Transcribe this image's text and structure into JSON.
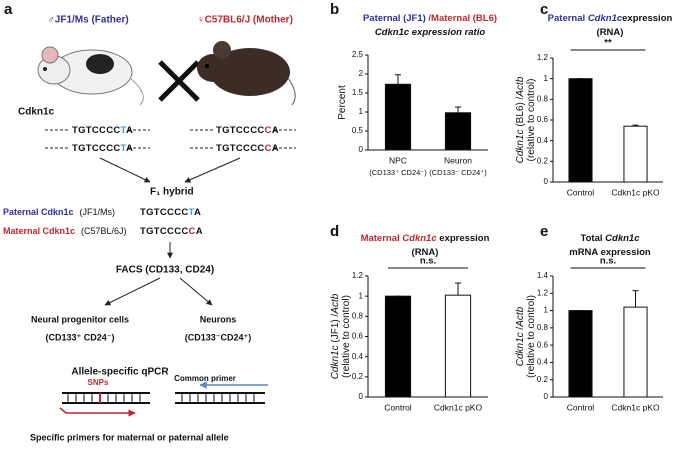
{
  "panel_a": {
    "label": "a",
    "father": "♂JF1/Ms (Father)",
    "mother": "♀C57BL6/J (Mother)",
    "gene": "Cdkn1c",
    "father_alleles": [
      {
        "prefix": "TGTCCCC",
        "snp": "T",
        "suffix": "A"
      },
      {
        "prefix": "TGTCCCC",
        "snp": "T",
        "suffix": "A"
      }
    ],
    "mother_alleles": [
      {
        "prefix": "TGTCCCC",
        "snp": "C",
        "suffix": "A"
      },
      {
        "prefix": "TGTCCCC",
        "snp": "C",
        "suffix": "A"
      }
    ],
    "hybrid": "F₁ hybrid",
    "paternal": {
      "name": "Paternal Cdkn1c",
      "strain": "(JF1/Ms)",
      "seq": {
        "prefix": "TGTCCCC",
        "snp": "T",
        "suffix": "A"
      }
    },
    "maternal": {
      "name": "Maternal Cdkn1c",
      "strain": "(C57BL/6J)",
      "seq": {
        "prefix": "TGTCCCC",
        "snp": "C",
        "suffix": "A"
      }
    },
    "facs": "FACS (CD133, CD24)",
    "npc": "Neural progenitor cells",
    "npc_markers": "(CD133⁺ CD24⁻)",
    "neurons": "Neurons",
    "neuron_markers": "(CD133⁻CD24⁺)",
    "qpcr": "Allele-specific qPCR",
    "snps": "SNPs",
    "common_primer": "Common primer",
    "specific_primers": "Specific primers for maternal or paternal allele"
  },
  "chart_data": [
    {
      "type": "bar",
      "label": "b",
      "title": [
        [
          {
            "text": "Paternal (JF1) ",
            "color": "#2e2e9e"
          },
          {
            "text": "/Maternal (BL6)",
            "color": "#c0272d"
          }
        ],
        [
          {
            "text": "Cdkn1c expression ratio",
            "italic": true
          }
        ]
      ],
      "ylabel": [
        [
          {
            "text": "Percent"
          }
        ]
      ],
      "categories": [
        "NPC",
        "Neuron"
      ],
      "category_sublabels": [
        "(CD133⁺ CD24⁻)",
        "(CD133⁻ CD24⁺)"
      ],
      "values": [
        1.73,
        0.98
      ],
      "errors": [
        0.25,
        0.15
      ],
      "colors": [
        "#000000",
        "#000000"
      ],
      "ylim": [
        0,
        2.5
      ],
      "yticks": [
        0,
        0.5,
        1,
        1.5,
        2,
        2.5
      ]
    },
    {
      "type": "bar",
      "label": "c",
      "title": [
        [
          {
            "text": "Paternal ",
            "color": "#2e2e9e"
          },
          {
            "text": "Cdkn1c",
            "italic": true,
            "color": "#2e2e9e"
          },
          {
            "text": "expression"
          }
        ],
        [
          {
            "text": "(RNA)"
          }
        ]
      ],
      "ylabel": [
        [
          {
            "text": "Cdkn1c",
            "italic": true
          },
          {
            "text": " (BL6) /"
          },
          {
            "text": "Actb",
            "italic": true
          }
        ],
        [
          {
            "text": "(relative to control)"
          }
        ]
      ],
      "categories": [
        "Control",
        "Cdkn1c pKO"
      ],
      "values": [
        1.0,
        0.54
      ],
      "errors": [
        0,
        0.01
      ],
      "colors": [
        "#000000",
        "#ffffff"
      ],
      "ylim": [
        0,
        1.2
      ],
      "yticks": [
        0,
        0.2,
        0.4,
        0.6,
        0.8,
        1,
        1.2
      ],
      "annotation": "**"
    },
    {
      "type": "bar",
      "label": "d",
      "title": [
        [
          {
            "text": "Maternal ",
            "color": "#c0272d"
          },
          {
            "text": "Cdkn1c",
            "italic": true,
            "color": "#c0272d"
          },
          {
            "text": " expression"
          }
        ],
        [
          {
            "text": "(RNA)"
          }
        ]
      ],
      "ylabel": [
        [
          {
            "text": "Cdkn1c",
            "italic": true
          },
          {
            "text": " (JF1) /"
          },
          {
            "text": "Actb",
            "italic": true
          }
        ],
        [
          {
            "text": "(relative to control)"
          }
        ]
      ],
      "categories": [
        "Control",
        "Cdkn1c pKO"
      ],
      "values": [
        1.0,
        1.01
      ],
      "errors": [
        0,
        0.12
      ],
      "colors": [
        "#000000",
        "#ffffff"
      ],
      "ylim": [
        0,
        1.2
      ],
      "yticks": [
        0,
        0.2,
        0.4,
        0.6,
        0.8,
        1,
        1.2
      ],
      "annotation": "n.s."
    },
    {
      "type": "bar",
      "label": "e",
      "title": [
        [
          {
            "text": "Total "
          },
          {
            "text": "Cdkn1c",
            "italic": true
          }
        ],
        [
          {
            "text": "mRNA expression"
          }
        ]
      ],
      "ylabel": [
        [
          {
            "text": "Cdkn1c",
            "italic": true
          },
          {
            "text": " /"
          },
          {
            "text": "Actb",
            "italic": true
          }
        ],
        [
          {
            "text": "(relative to control)"
          }
        ]
      ],
      "categories": [
        "Control",
        "Cdkn1c pKO"
      ],
      "values": [
        1.0,
        1.04
      ],
      "errors": [
        0,
        0.19
      ],
      "colors": [
        "#000000",
        "#ffffff"
      ],
      "ylim": [
        0,
        1.4
      ],
      "yticks": [
        0,
        0.2,
        0.4,
        0.6,
        0.8,
        1,
        1.2,
        1.4
      ],
      "annotation": "n.s."
    }
  ]
}
